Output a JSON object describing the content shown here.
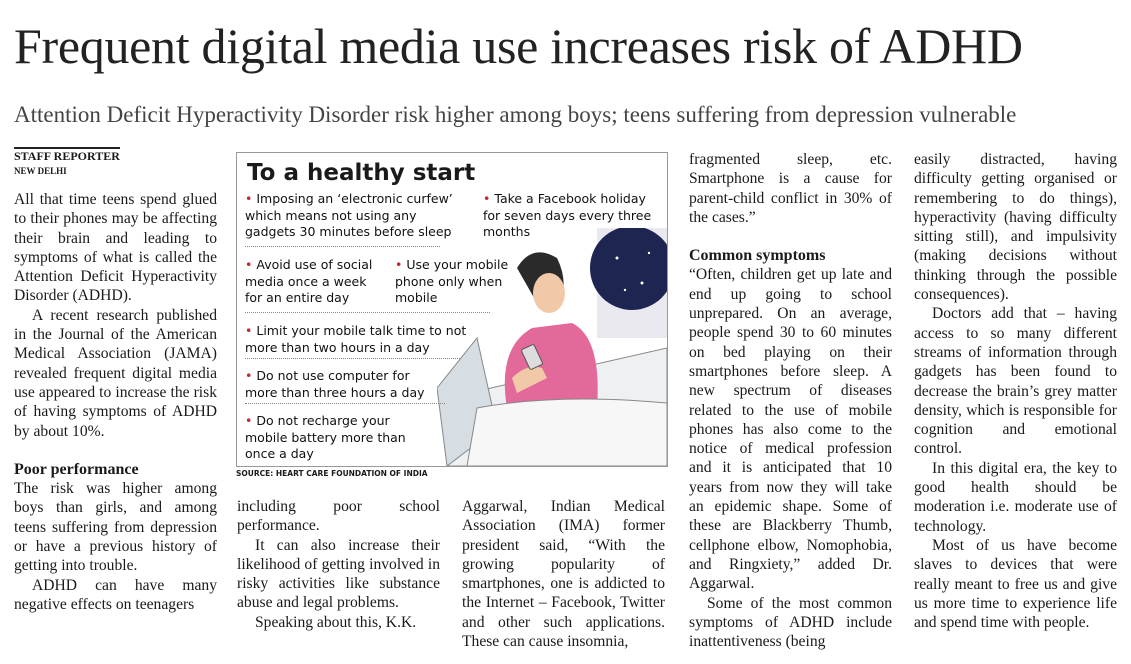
{
  "headline": "Frequent digital media use increases risk of ADHD",
  "subheadline": "Attention Deficit Hyperactivity Disorder risk higher among boys; teens suffering from depression vulnerable",
  "byline": {
    "author": "STAFF REPORTER",
    "location": "NEW DELHI"
  },
  "infographic": {
    "title": "To a healthy start",
    "tips": [
      "Imposing an ‘electronic curfew’ which means not using any gadgets 30 minutes before sleep",
      "Take a Facebook holiday for seven days every three months",
      "Avoid use of social media once a week for an entire day",
      "Use your mobile phone only when mobile",
      "Limit your mobile talk time to not more than two hours in a day",
      "Do not use computer for more than three hours a day",
      "Do not recharge your mobile battery more than once a day"
    ],
    "source": "SOURCE: HEART CARE FOUNDATION OF INDIA"
  },
  "columns": [
    {
      "blocks": [
        {
          "p": "All that time teens spend glued to their phones may be affecting their brain and leading to symptoms of what is called the Attention Deficit Hyperactivity Disorder (ADHD)."
        },
        {
          "p": "A recent research published in the Journal of the American Medical Association (JAMA) revealed frequent digital media use appeared to increase the risk of having symptoms of ADHD by about 10%."
        },
        {
          "h": "Poor performance"
        },
        {
          "p": "The risk was higher among boys than girls, and among teens suffering from depression or have a previous history of getting into trouble."
        },
        {
          "p": "ADHD can have many negative effects on teenagers"
        }
      ]
    },
    {
      "blocks": [
        {
          "p": "including poor school performance."
        },
        {
          "p": "It can also increase their likelihood of getting involved in risky activities like substance abuse and legal problems."
        },
        {
          "p": "Speaking about this, K.K."
        }
      ]
    },
    {
      "blocks": [
        {
          "p": "Aggarwal, Indian Medical Association (IMA) former president said, “With the growing popularity of smartphones, one is addicted to the Internet – Facebook, Twitter and other such applications. These can cause insomnia,"
        }
      ]
    },
    {
      "blocks": [
        {
          "p": "fragmented sleep, etc. Smartphone is a cause for parent-child conflict in 30% of the cases.”"
        },
        {
          "h": "Common symptoms"
        },
        {
          "p": "“Often, children get up late and end up going to school unprepared. On an average, people spend 30 to 60 minutes on bed playing on their smartphones before sleep. A new spectrum of diseases related to the use of mobile phones has also come to the notice of medical profession and it is anticipated that 10 years from now they will take an epidemic shape. Some of these are Blackberry Thumb, cellphone elbow, Nomophobia, and Ringxiety,” added Dr. Aggarwal."
        },
        {
          "p": "Some of the most common symptoms of ADHD include inattentiveness (being"
        }
      ]
    },
    {
      "blocks": [
        {
          "p": "easily distracted, having difficulty getting organised or remembering to do things), hyperactivity (having difficulty sitting still), and impulsivity (making decisions without thinking through the possible consequences)."
        },
        {
          "p": "Doctors add that – having access to so many different streams of information through gadgets has been found to decrease the brain’s grey matter density, which is responsible for cognition and emotional control."
        },
        {
          "p": "In this digital era, the key to good health should be moderation i.e. moderate use of technology."
        },
        {
          "p": "Most of us have become slaves to devices that were really meant to free us and give us more time to experience life and spend time with people."
        }
      ]
    }
  ]
}
